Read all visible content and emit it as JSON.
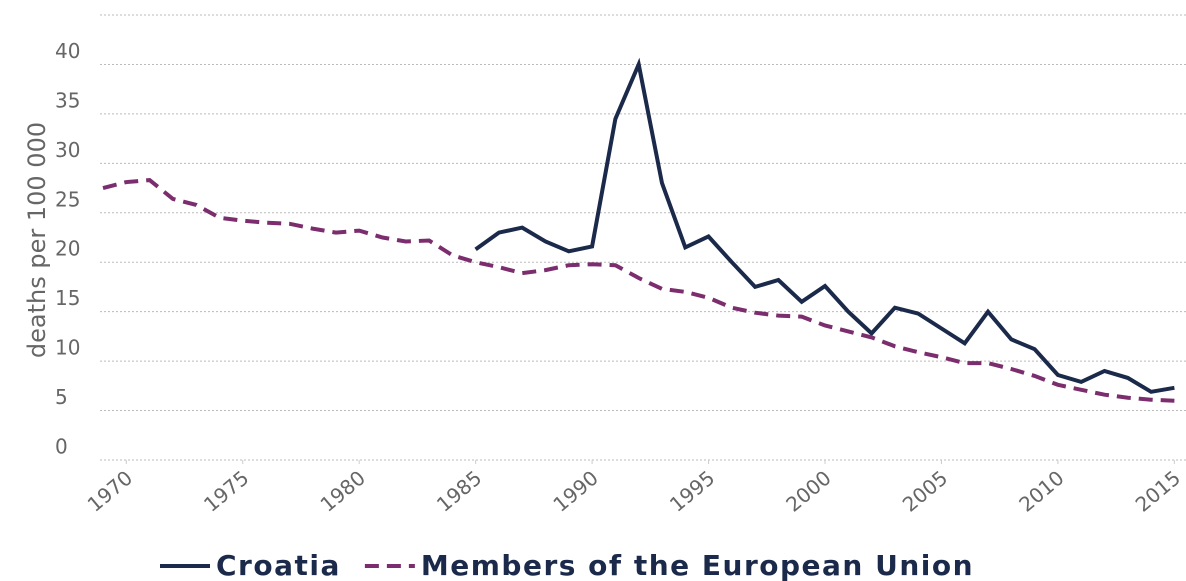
{
  "chart_data": {
    "type": "line",
    "y_label": "deaths per 100 000",
    "xlim": [
      1969,
      2015.5
    ],
    "xticks": [
      1970,
      1975,
      1980,
      1985,
      1990,
      1995,
      2000,
      2005,
      2010,
      2015
    ],
    "ylim": [
      0,
      45
    ],
    "yticks": [
      0,
      5,
      10,
      15,
      20,
      25,
      30,
      35,
      40
    ],
    "grid": true,
    "series": [
      {
        "name": "Croatia",
        "color": "#1b2a4a",
        "dash": false,
        "x": [
          1985,
          1986,
          1987,
          1988,
          1989,
          1990,
          1991,
          1992,
          1993,
          1994,
          1995,
          1996,
          1997,
          1998,
          1999,
          2000,
          2001,
          2002,
          2003,
          2004,
          2005,
          2006,
          2007,
          2008,
          2009,
          2010,
          2011,
          2012,
          2013,
          2014,
          2015
        ],
        "values": [
          21.3,
          23.0,
          23.5,
          22.1,
          21.1,
          21.6,
          34.5,
          40.0,
          28.0,
          21.5,
          22.6,
          20.0,
          17.5,
          18.2,
          16.0,
          17.6,
          15.0,
          12.8,
          15.4,
          14.8,
          13.3,
          11.8,
          15.0,
          12.2,
          11.2,
          8.6,
          7.9,
          9.0,
          8.3,
          6.9,
          7.3
        ]
      },
      {
        "name": "Members of the European Union",
        "color": "#7b2d6e",
        "dash": true,
        "x": [
          1969,
          1970,
          1971,
          1972,
          1973,
          1974,
          1975,
          1976,
          1977,
          1978,
          1979,
          1980,
          1981,
          1982,
          1983,
          1984,
          1985,
          1986,
          1987,
          1988,
          1989,
          1990,
          1991,
          1992,
          1993,
          1994,
          1995,
          1996,
          1997,
          1998,
          1999,
          2000,
          2001,
          2002,
          2003,
          2004,
          2005,
          2006,
          2007,
          2008,
          2009,
          2010,
          2011,
          2012,
          2013,
          2014,
          2015
        ],
        "values": [
          27.5,
          28.1,
          28.3,
          26.4,
          25.8,
          24.5,
          24.2,
          24.0,
          23.9,
          23.4,
          23.0,
          23.2,
          22.5,
          22.1,
          22.2,
          20.7,
          20.0,
          19.5,
          18.9,
          19.2,
          19.7,
          19.8,
          19.7,
          18.4,
          17.3,
          17.0,
          16.4,
          15.4,
          14.9,
          14.6,
          14.5,
          13.6,
          13.0,
          12.4,
          11.5,
          10.9,
          10.4,
          9.8,
          9.8,
          9.2,
          8.5,
          7.6,
          7.1,
          6.6,
          6.3,
          6.1,
          6.0
        ]
      }
    ]
  }
}
